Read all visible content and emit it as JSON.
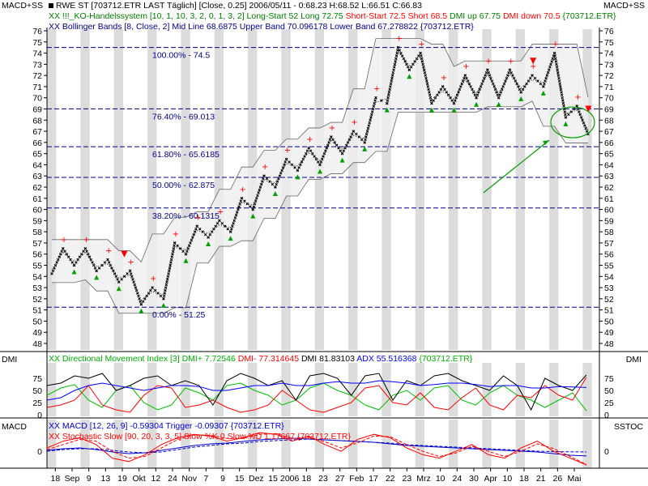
{
  "window": {
    "left_title": "MACD+SS",
    "right_title": "MACD+SS",
    "dmi_label": "DMI",
    "dmi_label_right": "DMI",
    "macd_label": "MACD",
    "sstoc_label": "SSTOC"
  },
  "header": {
    "line1": "RWE ST [703712.ETR LAST Täglich] [Close, 0.25] 2006/05/11 - 0:68.23 H:68.52 L:66.51 C:66.83",
    "line2_a": "XX !!!_KO-Handelssystem [10, 1, 10, 3, 2, 0, 1, 3, 2] Long-Start 52 Long 72.75 ",
    "line2_b": "Short-Start 72.5 Short 68.5",
    "line2_c": " DMI up 67.75 ",
    "line2_d": "DMI down 70.5",
    "line2_e": " {703712.ETR}",
    "line3": "XX Bollinger Bands [8, Close, 2] Mid Line 68.6875 Upper Band 70.096178 Lower Band 67.278822 {703712.ETR}"
  },
  "dmi_header": {
    "a": "XX Directional Movement Index [3] DMI+ 7.72546 ",
    "b": "DMI- 77.314645",
    "c": " DMI 81.83103 ",
    "d": "ADX 55.516368",
    "e": " {703712.ETR}"
  },
  "macd_header": {
    "macd": "XX MACD [12, 26, 9] -0.59304 Trigger -0.09307 {703712.ETR}",
    "stoch": "XX Stochastic Slow [90, 20, 3, 3, 5] Slow %K 0 Slow %D 1.17667 {703712.ETR}"
  },
  "colors": {
    "long": "#00a000",
    "short": "#ff0000",
    "pnf": "#000000",
    "fib": "#00008b",
    "dmi_plus": "#00c000",
    "dmi_minus": "#ff0000",
    "dmi": "#000000",
    "adx": "#0000ff",
    "macd": "#0000cc",
    "stoch": "#ff0000",
    "band_shade": "#efefef",
    "stripe": "#dcdcdc"
  },
  "chart_data": [
    {
      "type": "point-and-figure",
      "title": "RWE ST [703712.ETR LAST Täglich]",
      "ylim": [
        48,
        76
      ],
      "y_ticks": [
        48,
        49,
        50,
        51,
        52,
        53,
        54,
        55,
        56,
        57,
        58,
        59,
        60,
        61,
        62,
        63,
        64,
        65,
        66,
        67,
        68,
        69,
        70,
        71,
        72,
        73,
        74,
        75,
        76
      ],
      "x_tick_labels": [
        "18",
        "Sep",
        "9",
        "13",
        "19",
        "Okt",
        "12",
        "24",
        "Nov",
        "7",
        "9",
        "15",
        "Dez",
        "15",
        "2006",
        "18",
        "23",
        "27",
        "Feb",
        "17",
        "22",
        "23",
        "Mrz",
        "10",
        "24",
        "30",
        "Apr",
        "10",
        "18",
        "21",
        "26",
        "Mai"
      ],
      "pnf_path": [
        54.25,
        56.5,
        55,
        56.5,
        54.5,
        55.5,
        53.5,
        54.5,
        51.5,
        53,
        52,
        57,
        56,
        58.5,
        57.5,
        59,
        58,
        61,
        60,
        63,
        62,
        64.5,
        63.5,
        65.5,
        64,
        66.5,
        65,
        67,
        66,
        70,
        69.5,
        74.5,
        72.5,
        74,
        69.5,
        71,
        69.5,
        72,
        70,
        72.5,
        70,
        72.5,
        70.5,
        72,
        71,
        74,
        68.25,
        69.25,
        66.75
      ],
      "fib_levels": [
        {
          "label": "100.00% - 74.5",
          "value": 74.5
        },
        {
          "label": "76.40% - 69.013",
          "value": 69.013
        },
        {
          "label": "61.80% - 65.6185",
          "value": 65.6185
        },
        {
          "label": "50.00% - 62.875",
          "value": 62.875
        },
        {
          "label": "38.20% - 60.1315",
          "value": 60.1315
        },
        {
          "label": "0.00% - 51.25",
          "value": 51.25
        }
      ],
      "bollinger_mid": 68.6875,
      "bollinger_upper": 70.096178,
      "bollinger_lower": 67.278822
    },
    {
      "type": "line",
      "title": "Directional Movement Index [3]",
      "ylim": [
        0,
        100
      ],
      "y_ticks": [
        0,
        25,
        50,
        75
      ],
      "series": [
        {
          "name": "DMI+",
          "values": [
            40,
            55,
            62,
            30,
            15,
            50,
            60,
            25,
            10,
            20,
            55,
            45,
            30,
            60,
            65,
            50,
            40,
            20,
            30,
            55,
            65,
            50,
            40,
            20,
            10,
            40,
            50,
            30,
            55,
            60,
            30,
            20,
            45,
            60,
            40,
            30,
            15,
            30,
            45,
            8
          ]
        },
        {
          "name": "DMI-",
          "values": [
            15,
            20,
            30,
            60,
            20,
            10,
            5,
            40,
            60,
            55,
            15,
            20,
            30,
            15,
            5,
            10,
            20,
            50,
            30,
            10,
            5,
            15,
            25,
            55,
            60,
            25,
            20,
            45,
            15,
            10,
            35,
            55,
            20,
            10,
            40,
            35,
            60,
            40,
            30,
            77
          ]
        },
        {
          "name": "DMI",
          "values": [
            60,
            65,
            80,
            75,
            85,
            50,
            60,
            75,
            80,
            60,
            70,
            60,
            20,
            70,
            85,
            75,
            60,
            70,
            30,
            80,
            85,
            75,
            40,
            80,
            85,
            30,
            70,
            60,
            80,
            85,
            70,
            60,
            50,
            80,
            60,
            10,
            75,
            60,
            50,
            82
          ]
        },
        {
          "name": "ADX",
          "values": [
            30,
            35,
            50,
            60,
            65,
            60,
            55,
            50,
            55,
            60,
            60,
            58,
            50,
            50,
            55,
            60,
            60,
            65,
            60,
            60,
            65,
            68,
            65,
            65,
            70,
            68,
            65,
            60,
            62,
            65,
            65,
            62,
            58,
            60,
            60,
            55,
            55,
            58,
            57,
            56
          ]
        }
      ]
    },
    {
      "type": "line",
      "title": "MACD [12, 26, 9] / Stochastic Slow",
      "y_ticks": [
        0
      ],
      "series": [
        {
          "name": "MACD",
          "values": [
            0.1,
            0.3,
            0.4,
            0.2,
            -0.1,
            -0.3,
            -0.2,
            0.1,
            0.4,
            0.7,
            0.9,
            1.0,
            1.2,
            1.4,
            1.5,
            1.6,
            1.5,
            1.4,
            1.3,
            1.2,
            1.1,
            0.9,
            0.7,
            0.6,
            0.5,
            0.4,
            0.3,
            0.2,
            0.1,
            0.0,
            -0.1,
            -0.3,
            -0.5,
            -0.59
          ]
        },
        {
          "name": "Trigger",
          "values": [
            0.0,
            0.2,
            0.3,
            0.3,
            0.1,
            -0.1,
            -0.2,
            -0.1,
            0.2,
            0.5,
            0.7,
            0.9,
            1.0,
            1.2,
            1.3,
            1.4,
            1.5,
            1.4,
            1.3,
            1.2,
            1.1,
            1.0,
            0.8,
            0.7,
            0.6,
            0.5,
            0.4,
            0.3,
            0.2,
            0.1,
            0.0,
            -0.05,
            -0.08,
            -0.09
          ]
        },
        {
          "name": "Slow %K",
          "values": [
            50,
            70,
            80,
            60,
            20,
            10,
            30,
            60,
            80,
            90,
            85,
            70,
            80,
            95,
            90,
            70,
            85,
            60,
            40,
            75,
            90,
            80,
            50,
            30,
            20,
            40,
            60,
            30,
            20,
            50,
            70,
            40,
            20,
            0
          ]
        },
        {
          "name": "Slow %D",
          "values": [
            45,
            60,
            75,
            70,
            40,
            20,
            25,
            50,
            75,
            88,
            87,
            78,
            78,
            90,
            92,
            78,
            82,
            68,
            50,
            65,
            85,
            83,
            60,
            40,
            25,
            35,
            55,
            40,
            25,
            40,
            62,
            48,
            25,
            1.2
          ]
        }
      ]
    }
  ]
}
